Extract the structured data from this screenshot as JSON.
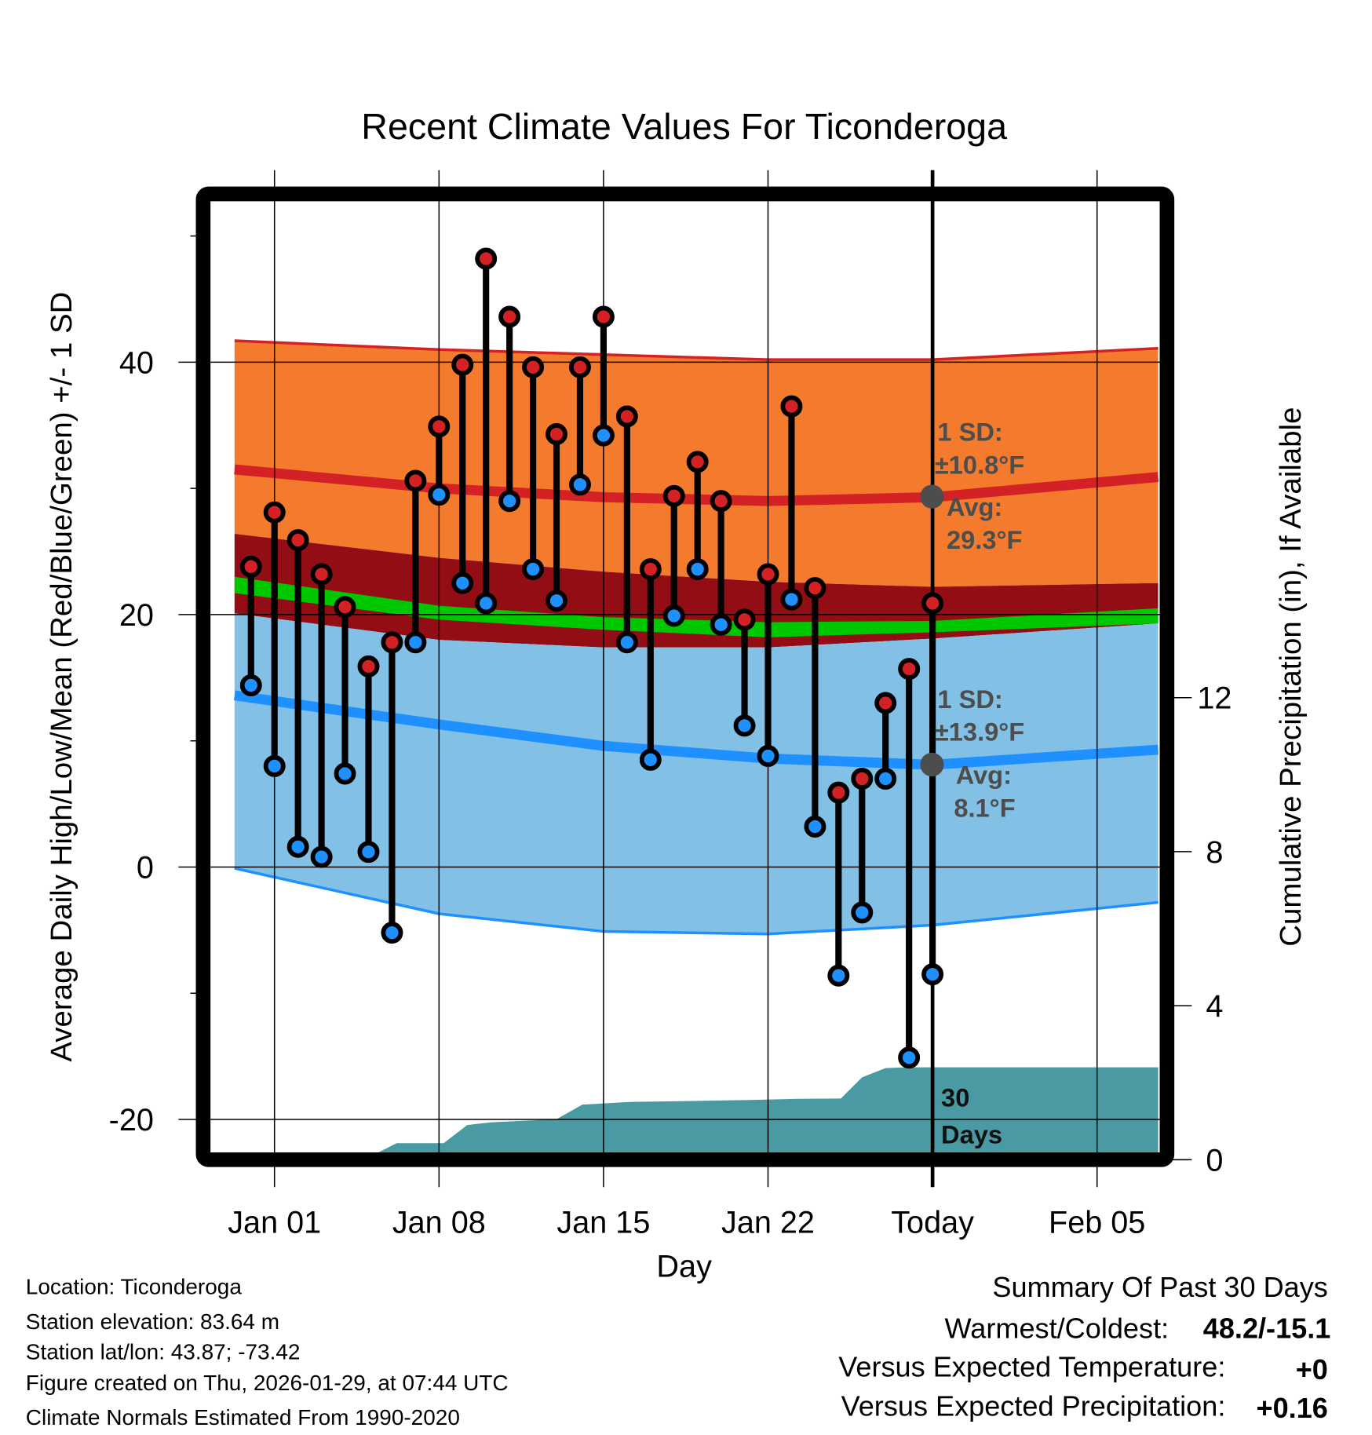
{
  "chart_data": {
    "type": "line",
    "title": "Recent Climate Values For Ticonderoga",
    "xlabel": "Day",
    "ylabel": "Average Daily High/Low/Mean (Red/Blue/Green) +/- 1 SD",
    "y2label": "Cumulative Precipitation (in), If Available",
    "x_units": "day of January (Jan 01 = 1)",
    "xlim": [
      -0.7,
      38.6
    ],
    "ylim": [
      -22.5,
      53.9
    ],
    "y2lim": [
      0,
      18.1
    ],
    "x_ticks": [
      {
        "x": 1,
        "label": "Jan 01"
      },
      {
        "x": 8,
        "label": "Jan 08"
      },
      {
        "x": 15,
        "label": "Jan 15"
      },
      {
        "x": 22,
        "label": "Jan 22"
      },
      {
        "x": 29,
        "label": "Today"
      },
      {
        "x": 36,
        "label": "Feb 05"
      }
    ],
    "y_ticks": [
      {
        "v": 40,
        "label": "40"
      },
      {
        "v": 20,
        "label": "20"
      },
      {
        "v": 0,
        "label": "0"
      },
      {
        "v": -20,
        "label": "-20"
      }
    ],
    "y_minor_ticks": [
      50,
      30,
      10,
      -10
    ],
    "y2_ticks": [
      {
        "v": 0,
        "label": "0"
      },
      {
        "v": 4,
        "label": "4"
      },
      {
        "v": 8,
        "label": "8"
      },
      {
        "v": 12,
        "label": "12"
      }
    ],
    "grid": true,
    "observations": {
      "days": [
        0,
        1,
        2,
        3,
        4,
        5,
        6,
        7,
        8,
        9,
        10,
        11,
        12,
        13,
        14,
        15,
        16,
        17,
        18,
        19,
        20,
        21,
        22,
        23,
        24,
        25,
        26,
        27,
        28,
        29
      ],
      "high": [
        23.8,
        28.1,
        25.9,
        23.2,
        20.6,
        15.9,
        17.8,
        30.6,
        34.9,
        39.8,
        48.2,
        43.6,
        39.6,
        34.3,
        39.6,
        43.6,
        35.7,
        23.6,
        29.4,
        32.1,
        29.0,
        19.6,
        23.2,
        36.5,
        22.1,
        5.9,
        7.0,
        13.0,
        15.7,
        20.9
      ],
      "low": [
        14.4,
        8.0,
        1.6,
        0.8,
        7.4,
        1.2,
        -5.2,
        17.8,
        29.5,
        22.5,
        20.9,
        29.0,
        23.6,
        21.1,
        30.3,
        34.2,
        17.8,
        8.5,
        19.9,
        23.6,
        19.2,
        11.2,
        8.8,
        21.2,
        3.2,
        -8.6,
        -3.6,
        7.0,
        -15.1,
        -8.5
      ]
    },
    "normals": {
      "days": [
        -0.7,
        8,
        15,
        22,
        29,
        38.6
      ],
      "high_upper": [
        41.7,
        41.0,
        40.6,
        40.2,
        40.2,
        41.1
      ],
      "high_mean": [
        31.5,
        30.0,
        29.3,
        29.0,
        29.3,
        30.9
      ],
      "high_lower": [
        26.4,
        24.5,
        23.4,
        22.6,
        22.2,
        22.5
      ],
      "mean_upper": [
        23.0,
        20.7,
        19.8,
        19.4,
        19.5,
        20.5
      ],
      "mean_lower": [
        21.7,
        19.6,
        18.8,
        18.2,
        18.6,
        19.3
      ],
      "low_upper": [
        20.1,
        18.0,
        17.4,
        17.4,
        18.1,
        19.3
      ],
      "low_mean": [
        13.6,
        11.3,
        9.6,
        8.6,
        8.1,
        9.3
      ],
      "low_lower": [
        -0.1,
        -3.7,
        -5.1,
        -5.3,
        -4.6,
        -2.8
      ]
    },
    "precipitation": {
      "days": [
        -0.7,
        4.8,
        6.2,
        8.2,
        9.2,
        10.2,
        13.0,
        14.1,
        16.1,
        21.2,
        23.1,
        25.1,
        26.0,
        27.0,
        28.0,
        38.6
      ],
      "cumulative_in": [
        0,
        0,
        0.43,
        0.43,
        0.9,
        0.97,
        1.05,
        1.43,
        1.5,
        1.55,
        1.58,
        1.59,
        2.14,
        2.38,
        2.4,
        2.4
      ]
    },
    "annotations": {
      "high_sd": [
        "1 SD:",
        "±10.8°F"
      ],
      "high_avg": [
        "Avg:",
        "29.3°F"
      ],
      "low_sd": [
        "1 SD:",
        "±13.9°F"
      ],
      "low_avg": [
        "Avg:",
        "8.1°F"
      ],
      "precip_window": [
        "30",
        "Days"
      ]
    },
    "colors": {
      "high_band": "#f47b2e",
      "overlap": "#920d14",
      "high_mean": "#d42126",
      "mean_band": "#00c800",
      "low_band": "#82c0e6",
      "low_mean": "#1e90ff",
      "precip": "#4a9aa3",
      "high_marker": "#d42126",
      "low_marker": "#1e90ff",
      "annotation": "#4d4d4d"
    }
  },
  "footer": {
    "location": "Location: Ticonderoga",
    "elevation": "Station elevation: 83.64 m",
    "latlon": "Station lat/lon: 43.87; -73.42",
    "created": "Figure created on Thu, 2026-01-29, at 07:44 UTC",
    "normals": "Climate Normals Estimated From 1990-2020"
  },
  "summary": {
    "title": "Summary Of Past 30 Days",
    "warmest_label": "Warmest/Coldest:",
    "warmest_value": "48.2/-15.1",
    "temp_label": "Versus Expected Temperature:",
    "temp_value": "+0",
    "temp_color": "#d42126",
    "precip_label": "Versus Expected Precipitation:",
    "precip_value": "+0.16",
    "precip_color": "#22b922"
  }
}
